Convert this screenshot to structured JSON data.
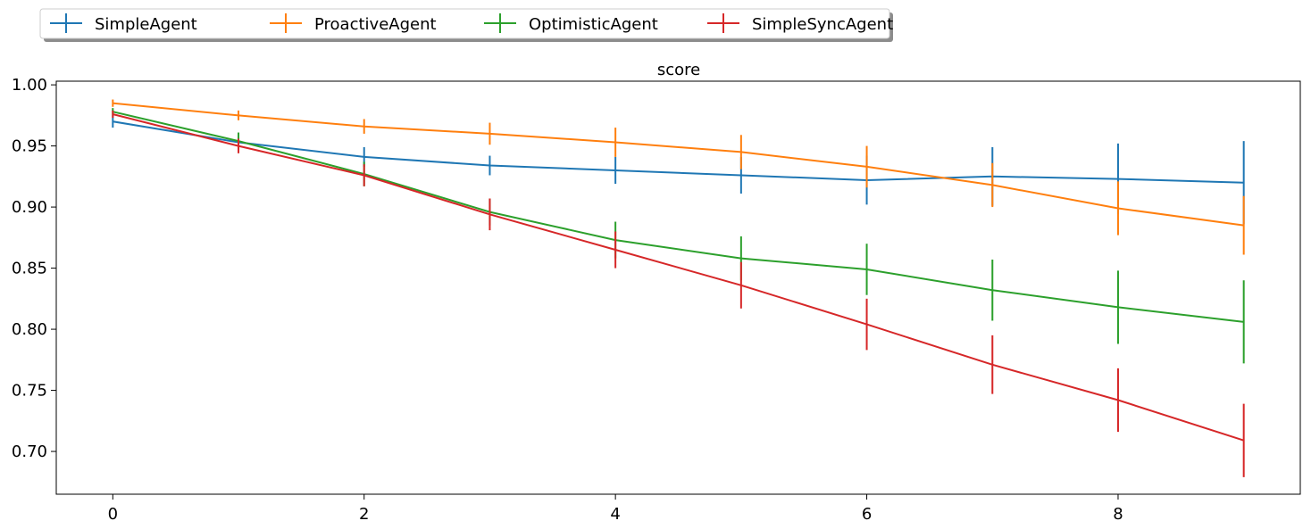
{
  "chart_data": {
    "type": "line",
    "title": "score",
    "xlabel": "",
    "ylabel": "",
    "xlim": [
      -0.45,
      9.45
    ],
    "ylim": [
      0.665,
      1.003
    ],
    "xticks": [
      0,
      2,
      4,
      6,
      8
    ],
    "yticks": [
      0.7,
      0.75,
      0.8,
      0.85,
      0.9,
      0.95,
      1.0
    ],
    "grid": false,
    "legend_position": "top-left, outside above plot",
    "x": [
      0,
      1,
      2,
      3,
      4,
      5,
      6,
      7,
      8,
      9
    ],
    "series": [
      {
        "name": "SimpleAgent",
        "color": "#1f77b4",
        "values": [
          0.97,
          0.953,
          0.941,
          0.934,
          0.93,
          0.926,
          0.922,
          0.925,
          0.923,
          0.92
        ],
        "errors": [
          0.005,
          0.004,
          0.008,
          0.008,
          0.011,
          0.015,
          0.02,
          0.024,
          0.029,
          0.034
        ]
      },
      {
        "name": "ProactiveAgent",
        "color": "#ff7f0e",
        "values": [
          0.985,
          0.975,
          0.966,
          0.96,
          0.953,
          0.945,
          0.933,
          0.918,
          0.899,
          0.885
        ],
        "errors": [
          0.003,
          0.004,
          0.006,
          0.009,
          0.012,
          0.014,
          0.017,
          0.018,
          0.022,
          0.024
        ]
      },
      {
        "name": "OptimisticAgent",
        "color": "#2ca02c",
        "values": [
          0.978,
          0.954,
          0.927,
          0.896,
          0.873,
          0.858,
          0.849,
          0.832,
          0.818,
          0.806
        ],
        "errors": [
          0.003,
          0.007,
          0.01,
          0.011,
          0.015,
          0.018,
          0.021,
          0.025,
          0.03,
          0.034
        ]
      },
      {
        "name": "SimpleSyncAgent",
        "color": "#d62728",
        "values": [
          0.976,
          0.95,
          0.926,
          0.894,
          0.865,
          0.836,
          0.804,
          0.771,
          0.742,
          0.709
        ],
        "errors": [
          0.003,
          0.006,
          0.009,
          0.013,
          0.015,
          0.019,
          0.021,
          0.024,
          0.026,
          0.03
        ]
      }
    ]
  }
}
